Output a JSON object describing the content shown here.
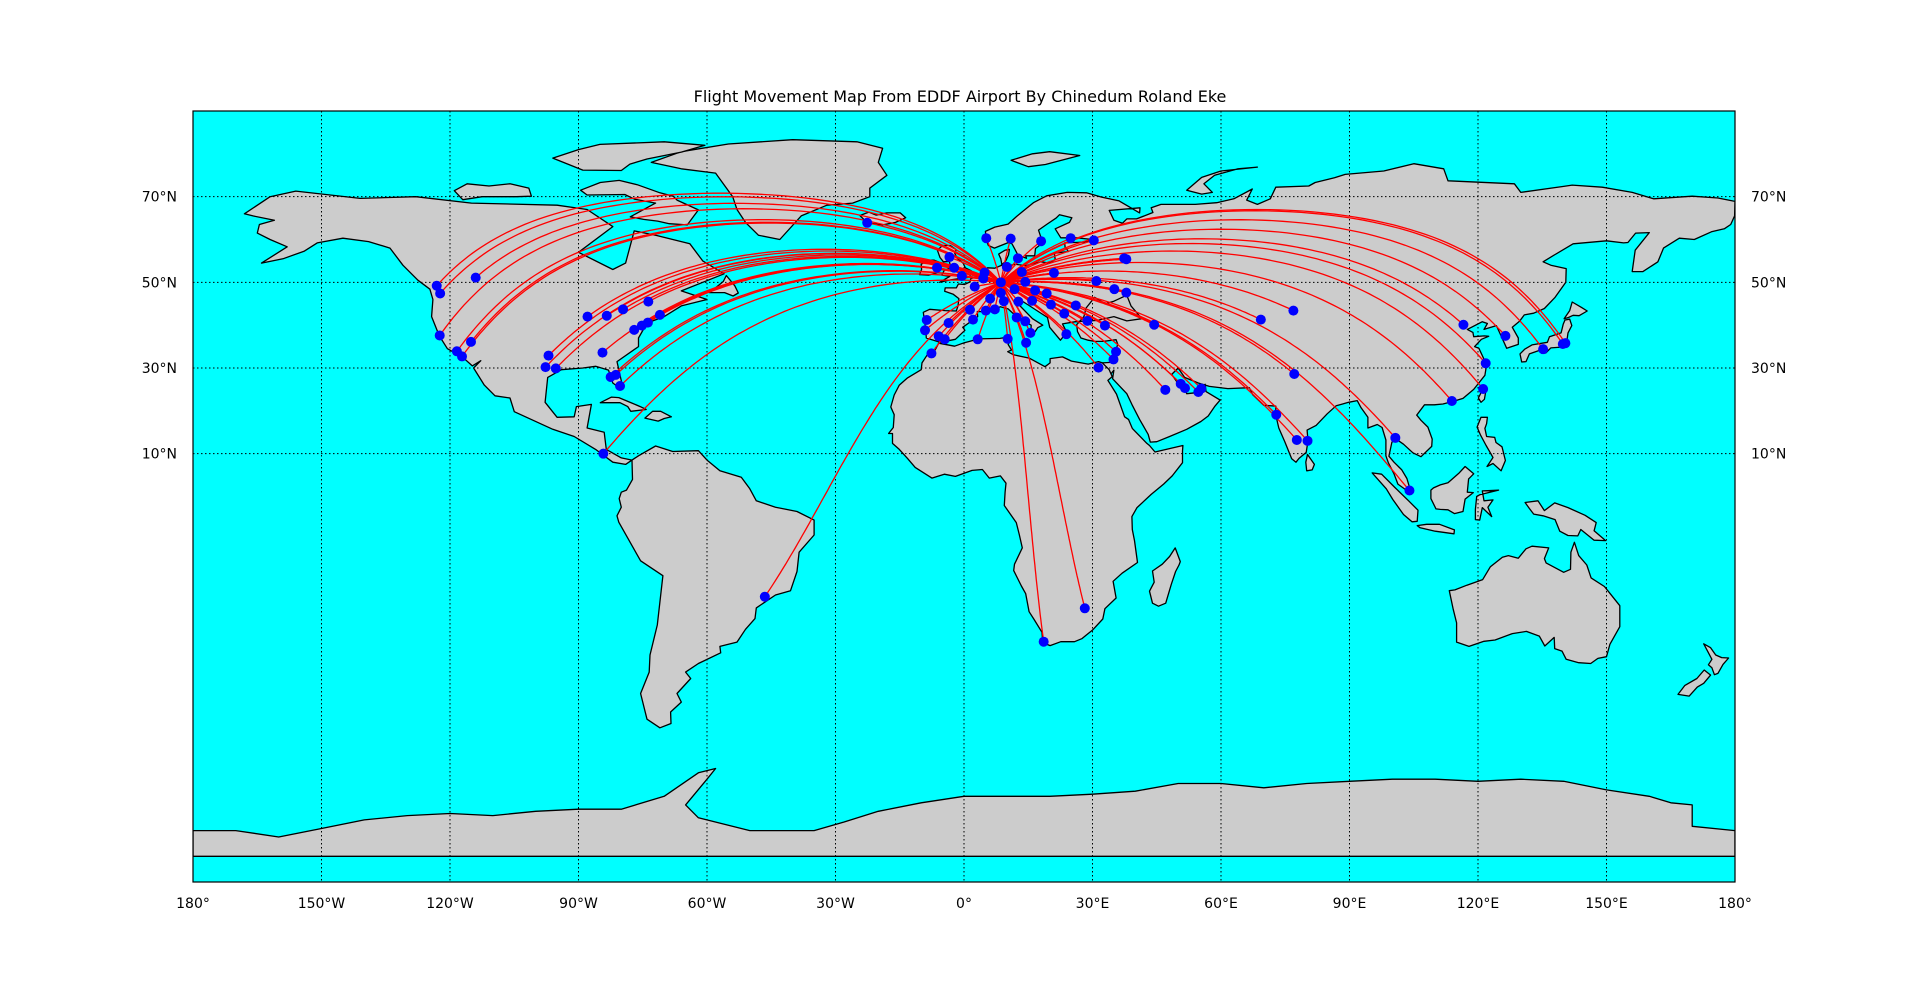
{
  "title": "Flight Movement Map From EDDF Airport By Chinedum Roland Eke",
  "map": {
    "projection": "cylindrical",
    "lon_range": [
      -180,
      180
    ],
    "lat_range": [
      -90,
      90
    ],
    "ocean_color": "#00ffff",
    "land_color": "#cccccc",
    "coast_color": "#000000",
    "route_color": "#ff0000",
    "airport_color": "#0000ff",
    "grid": "dotted",
    "meridians": [
      -150,
      -120,
      -90,
      -60,
      -30,
      0,
      30,
      60,
      90,
      120,
      150
    ],
    "parallels": [
      10,
      30,
      50,
      70
    ],
    "lon_labels": [
      {
        "lon": -180,
        "text": "180°"
      },
      {
        "lon": -150,
        "text": "150°W"
      },
      {
        "lon": -120,
        "text": "120°W"
      },
      {
        "lon": -90,
        "text": "90°W"
      },
      {
        "lon": -60,
        "text": "60°W"
      },
      {
        "lon": -30,
        "text": "30°W"
      },
      {
        "lon": 0,
        "text": "0°"
      },
      {
        "lon": 30,
        "text": "30°E"
      },
      {
        "lon": 60,
        "text": "60°E"
      },
      {
        "lon": 90,
        "text": "90°E"
      },
      {
        "lon": 120,
        "text": "120°E"
      },
      {
        "lon": 150,
        "text": "150°E"
      },
      {
        "lon": 180,
        "text": "180°"
      }
    ],
    "lat_labels": [
      {
        "lat": 70,
        "text": "70°N"
      },
      {
        "lat": 50,
        "text": "50°N"
      },
      {
        "lat": 30,
        "text": "30°N"
      },
      {
        "lat": 10,
        "text": "10°N"
      }
    ]
  },
  "origin": {
    "name": "EDDF",
    "lon": 8.6,
    "lat": 50.0
  },
  "destinations": [
    {
      "lon": -122.4,
      "lat": 37.6
    },
    {
      "lon": -118.4,
      "lat": 33.9
    },
    {
      "lon": -117.2,
      "lat": 32.7
    },
    {
      "lon": -115.1,
      "lat": 36.1
    },
    {
      "lon": -122.3,
      "lat": 47.4
    },
    {
      "lon": -123.1,
      "lat": 49.2
    },
    {
      "lon": -114.0,
      "lat": 51.1
    },
    {
      "lon": -87.9,
      "lat": 42.0
    },
    {
      "lon": -84.4,
      "lat": 33.6
    },
    {
      "lon": -97.0,
      "lat": 32.9
    },
    {
      "lon": -95.3,
      "lat": 29.9
    },
    {
      "lon": -97.7,
      "lat": 30.2
    },
    {
      "lon": -80.3,
      "lat": 25.8
    },
    {
      "lon": -81.3,
      "lat": 28.4
    },
    {
      "lon": -82.5,
      "lat": 27.9
    },
    {
      "lon": -77.0,
      "lat": 38.9
    },
    {
      "lon": -75.2,
      "lat": 39.9
    },
    {
      "lon": -73.8,
      "lat": 40.6
    },
    {
      "lon": -71.0,
      "lat": 42.4
    },
    {
      "lon": -79.6,
      "lat": 43.7
    },
    {
      "lon": -73.7,
      "lat": 45.5
    },
    {
      "lon": -83.4,
      "lat": 42.2
    },
    {
      "lon": -84.2,
      "lat": 10.0
    },
    {
      "lon": -46.5,
      "lat": -23.4
    },
    {
      "lon": -22.6,
      "lat": 63.9
    },
    {
      "lon": 18.6,
      "lat": -33.9
    },
    {
      "lon": 28.2,
      "lat": -26.1
    },
    {
      "lon": 31.4,
      "lat": 30.1
    },
    {
      "lon": 34.9,
      "lat": 32.0
    },
    {
      "lon": 35.5,
      "lat": 33.8
    },
    {
      "lon": 28.8,
      "lat": 41.0
    },
    {
      "lon": 23.9,
      "lat": 37.9
    },
    {
      "lon": 32.9,
      "lat": 39.9
    },
    {
      "lon": 37.4,
      "lat": 55.6
    },
    {
      "lon": 37.9,
      "lat": 55.4
    },
    {
      "lon": 30.3,
      "lat": 59.8
    },
    {
      "lon": 24.9,
      "lat": 60.3
    },
    {
      "lon": 18.0,
      "lat": 59.6
    },
    {
      "lon": 10.9,
      "lat": 60.2
    },
    {
      "lon": 12.6,
      "lat": 55.6
    },
    {
      "lon": 21.0,
      "lat": 52.2
    },
    {
      "lon": 30.9,
      "lat": 50.3
    },
    {
      "lon": 26.1,
      "lat": 44.6
    },
    {
      "lon": 19.3,
      "lat": 47.4
    },
    {
      "lon": 16.6,
      "lat": 48.1
    },
    {
      "lon": 14.3,
      "lat": 50.1
    },
    {
      "lon": 13.5,
      "lat": 52.4
    },
    {
      "lon": 10.0,
      "lat": 53.6
    },
    {
      "lon": 11.8,
      "lat": 48.4
    },
    {
      "lon": 8.6,
      "lat": 47.5
    },
    {
      "lon": 6.1,
      "lat": 46.2
    },
    {
      "lon": 2.5,
      "lat": 49.0
    },
    {
      "lon": 4.8,
      "lat": 52.3
    },
    {
      "lon": 4.5,
      "lat": 50.9
    },
    {
      "lon": -0.5,
      "lat": 51.5
    },
    {
      "lon": -2.3,
      "lat": 53.4
    },
    {
      "lon": -6.3,
      "lat": 53.4
    },
    {
      "lon": -3.4,
      "lat": 55.9
    },
    {
      "lon": 5.2,
      "lat": 60.3
    },
    {
      "lon": 2.1,
      "lat": 41.3
    },
    {
      "lon": -3.6,
      "lat": 40.5
    },
    {
      "lon": -9.1,
      "lat": 38.8
    },
    {
      "lon": -8.7,
      "lat": 41.2
    },
    {
      "lon": -4.5,
      "lat": 36.7
    },
    {
      "lon": -5.9,
      "lat": 37.4
    },
    {
      "lon": 12.3,
      "lat": 41.8
    },
    {
      "lon": 9.3,
      "lat": 45.6
    },
    {
      "lon": 14.3,
      "lat": 40.9
    },
    {
      "lon": 15.5,
      "lat": 38.2
    },
    {
      "lon": 14.5,
      "lat": 35.9
    },
    {
      "lon": 10.2,
      "lat": 36.8
    },
    {
      "lon": 3.2,
      "lat": 36.7
    },
    {
      "lon": -7.6,
      "lat": 33.4
    },
    {
      "lon": 5.1,
      "lat": 43.4
    },
    {
      "lon": 7.2,
      "lat": 43.7
    },
    {
      "lon": 1.4,
      "lat": 43.6
    },
    {
      "lon": 12.7,
      "lat": 45.5
    },
    {
      "lon": 15.9,
      "lat": 45.7
    },
    {
      "lon": 20.3,
      "lat": 44.8
    },
    {
      "lon": 23.4,
      "lat": 42.7
    },
    {
      "lon": 44.4,
      "lat": 40.1
    },
    {
      "lon": 47.0,
      "lat": 24.9
    },
    {
      "lon": 51.6,
      "lat": 25.3
    },
    {
      "lon": 54.7,
      "lat": 24.4
    },
    {
      "lon": 55.4,
      "lat": 25.2
    },
    {
      "lon": 50.6,
      "lat": 26.3
    },
    {
      "lon": 69.3,
      "lat": 41.3
    },
    {
      "lon": 76.9,
      "lat": 43.4
    },
    {
      "lon": 77.1,
      "lat": 28.6
    },
    {
      "lon": 72.9,
      "lat": 19.1
    },
    {
      "lon": 77.7,
      "lat": 13.2
    },
    {
      "lon": 80.2,
      "lat": 13.0
    },
    {
      "lon": 100.7,
      "lat": 13.7
    },
    {
      "lon": 104.0,
      "lat": 1.4
    },
    {
      "lon": 113.9,
      "lat": 22.3
    },
    {
      "lon": 121.2,
      "lat": 25.1
    },
    {
      "lon": 121.8,
      "lat": 31.1
    },
    {
      "lon": 116.6,
      "lat": 40.1
    },
    {
      "lon": 126.4,
      "lat": 37.5
    },
    {
      "lon": 135.2,
      "lat": 34.4
    },
    {
      "lon": 139.8,
      "lat": 35.6
    },
    {
      "lon": 140.4,
      "lat": 35.8
    },
    {
      "lon": 37.9,
      "lat": 47.6
    },
    {
      "lon": 35.1,
      "lat": 48.4
    }
  ]
}
